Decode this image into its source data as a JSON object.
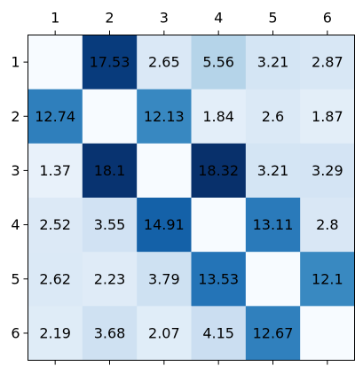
{
  "chart_data": {
    "type": "heatmap",
    "title": "",
    "xlabel": "",
    "ylabel": "",
    "x_ticks": [
      "1",
      "2",
      "3",
      "4",
      "5",
      "6"
    ],
    "y_ticks": [
      "1",
      "2",
      "3",
      "4",
      "5",
      "6"
    ],
    "x_tick_position": "top",
    "colormap": "Blues",
    "value_range": [
      0,
      18.32
    ],
    "values": [
      [
        0,
        17.53,
        2.65,
        5.56,
        3.21,
        2.87
      ],
      [
        12.74,
        0,
        12.13,
        1.84,
        2.6,
        1.87
      ],
      [
        1.37,
        18.1,
        0,
        18.32,
        3.21,
        3.29
      ],
      [
        2.52,
        3.55,
        14.91,
        0,
        13.11,
        2.8
      ],
      [
        2.62,
        2.23,
        3.79,
        13.53,
        0,
        12.1
      ],
      [
        2.19,
        3.68,
        2.07,
        4.15,
        12.67,
        0
      ]
    ],
    "cell_labels": [
      [
        "",
        "17.53",
        "2.65",
        "5.56",
        "3.21",
        "2.87"
      ],
      [
        "12.74",
        "",
        "12.13",
        "1.84",
        "2.6",
        "1.87"
      ],
      [
        "1.37",
        "18.1",
        "",
        "18.32",
        "3.21",
        "3.29"
      ],
      [
        "2.52",
        "3.55",
        "14.91",
        "",
        "13.11",
        "2.8"
      ],
      [
        "2.62",
        "2.23",
        "3.79",
        "13.53",
        "",
        "12.1"
      ],
      [
        "2.19",
        "3.68",
        "2.07",
        "4.15",
        "12.67",
        ""
      ]
    ],
    "grid": false,
    "legend": false
  }
}
